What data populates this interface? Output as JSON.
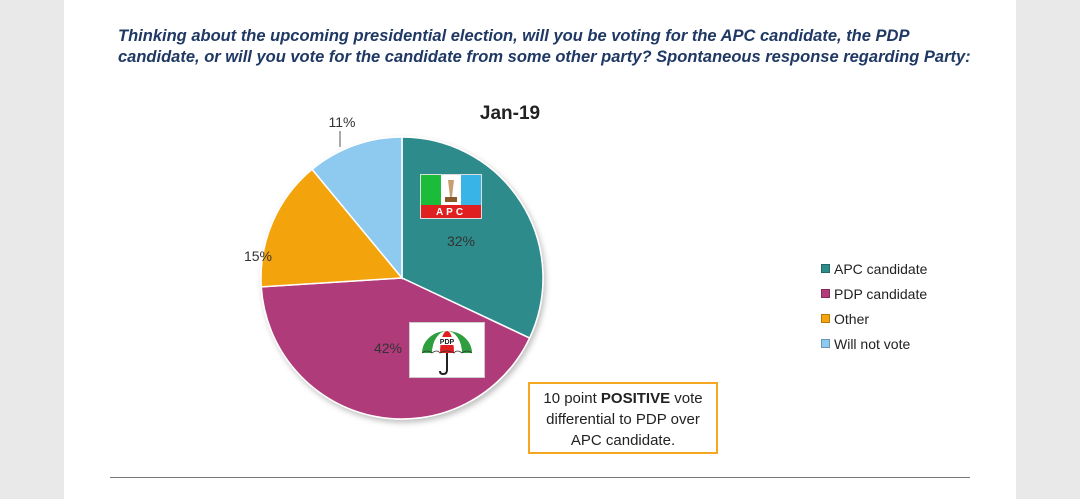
{
  "question": "Thinking about the upcoming presidential election, will you be voting for the APC candidate, the PDP candidate, or will you vote for the candidate from some other party? Spontaneous response regarding Party:",
  "chart_data": {
    "type": "pie",
    "title": "Jan-19",
    "slices": [
      {
        "name": "APC candidate",
        "value": 32,
        "label": "32%",
        "color": "#2e8b8c"
      },
      {
        "name": "PDP candidate",
        "value": 42,
        "label": "42%",
        "color": "#b03a7a"
      },
      {
        "name": "Other",
        "value": 15,
        "label": "15%",
        "color": "#f3a40f"
      },
      {
        "name": "Will not vote",
        "value": 11,
        "label": "11%",
        "color": "#8ec9ef"
      }
    ],
    "legend_position": "right"
  },
  "logos": {
    "apc_text": "APC",
    "pdp_text": "PDP"
  },
  "callout": {
    "prefix": "10 point ",
    "emphasis": "POSITIVE",
    "suffix": " vote differential to PDP over APC candidate."
  }
}
